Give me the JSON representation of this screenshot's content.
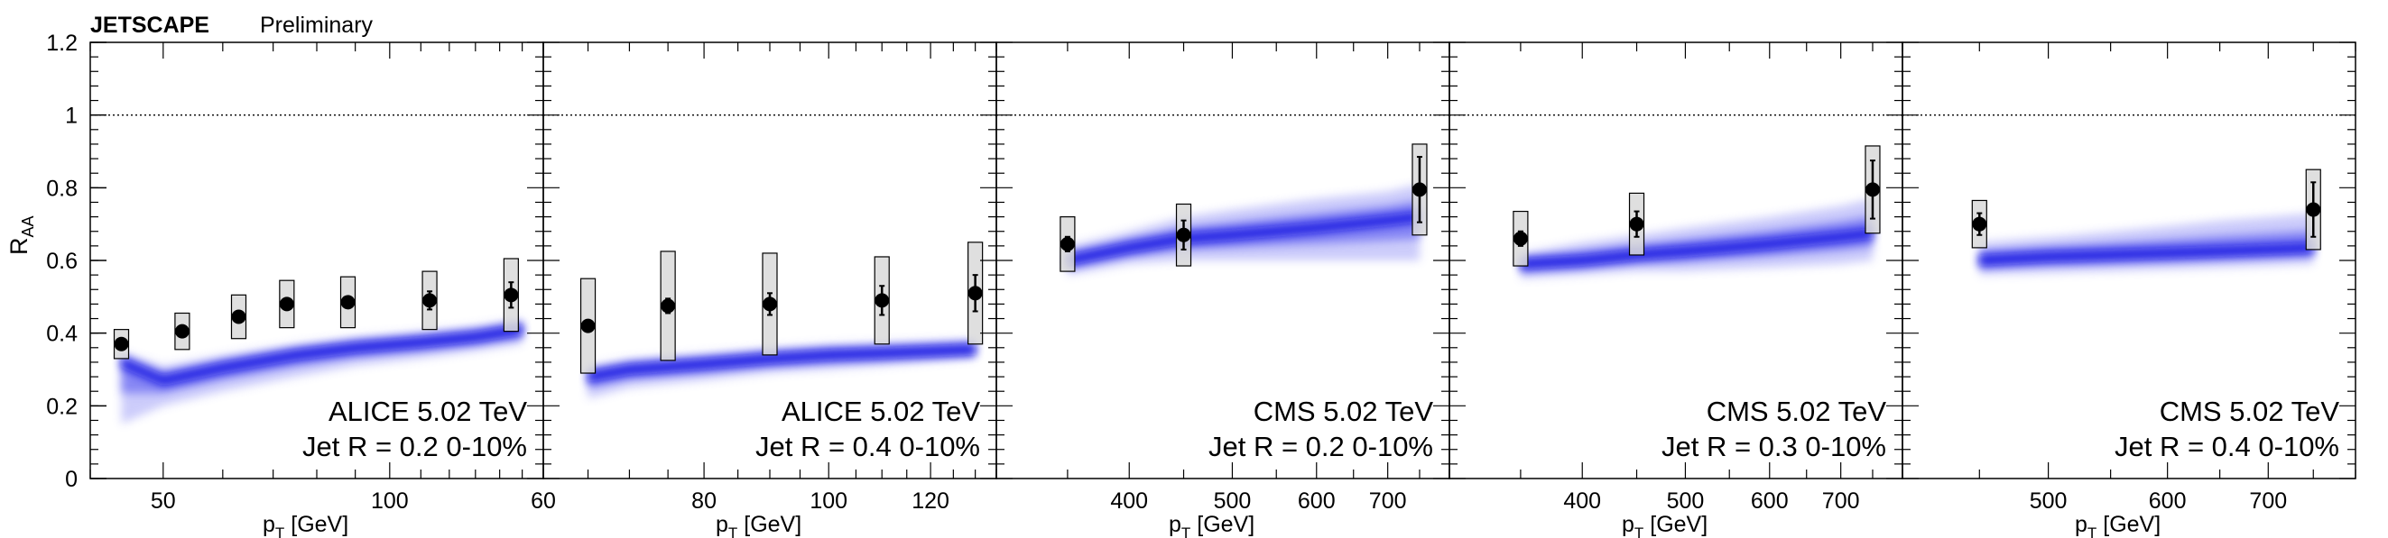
{
  "header": {
    "collab": "JETSCAPE",
    "status": "Preliminary"
  },
  "y_axis": {
    "label_main": "R",
    "label_sub": "AA",
    "ticks": [
      "0",
      "0.2",
      "0.4",
      "0.6",
      "0.8",
      "1",
      "1.2"
    ]
  },
  "x_axis": {
    "label_main": "p",
    "label_sub": "T",
    "label_unit": " [GeV]"
  },
  "chart_data": [
    {
      "type": "scatter",
      "title": "ALICE 5.02 TeV",
      "subtitle": "Jet R = 0.2 0-10%",
      "xlabel": "pT [GeV]",
      "ylabel": "RAA",
      "xlim": [
        40,
        160
      ],
      "ylim": [
        0,
        1.2
      ],
      "xscale": "log",
      "grid": false,
      "x_ticks": [
        50,
        100
      ],
      "x_tick_labels": [
        "50",
        "100"
      ],
      "reference_line": 1,
      "series": [
        {
          "name": "",
          "x": [
            44,
            53,
            63,
            73,
            88,
            113,
            145
          ],
          "y": [
            0.37,
            0.405,
            0.445,
            0.48,
            0.485,
            0.49,
            0.505
          ],
          "stat_err": [
            0.01,
            0.01,
            0.01,
            0.01,
            0.01,
            0.025,
            0.035
          ],
          "sys_err": [
            0.04,
            0.05,
            0.06,
            0.065,
            0.07,
            0.08,
            0.1
          ]
        }
      ],
      "band": {
        "x": [
          44,
          50,
          60,
          75,
          90,
          110,
          130,
          150
        ],
        "center": [
          0.32,
          0.27,
          0.305,
          0.34,
          0.36,
          0.375,
          0.39,
          0.41
        ],
        "upper": [
          0.35,
          0.31,
          0.34,
          0.37,
          0.39,
          0.405,
          0.42,
          0.44
        ],
        "lower": [
          0.15,
          0.2,
          0.24,
          0.28,
          0.31,
          0.33,
          0.35,
          0.37
        ]
      }
    },
    {
      "type": "scatter",
      "title": "ALICE 5.02 TeV",
      "subtitle": "Jet R = 0.4 0-10%",
      "xlabel": "pT [GeV]",
      "ylabel": "RAA",
      "xlim": [
        60,
        135
      ],
      "ylim": [
        0,
        1.2
      ],
      "xscale": "log",
      "grid": false,
      "x_ticks": [
        60,
        80,
        100,
        120
      ],
      "x_tick_labels": [
        "60",
        "80",
        "100",
        "120"
      ],
      "reference_line": 1,
      "series": [
        {
          "name": "",
          "x": [
            65,
            75,
            90,
            110,
            130
          ],
          "y": [
            0.42,
            0.475,
            0.48,
            0.49,
            0.51
          ],
          "stat_err": [
            0.01,
            0.02,
            0.03,
            0.04,
            0.05
          ],
          "sys_err": [
            0.13,
            0.15,
            0.14,
            0.12,
            0.14
          ]
        }
      ],
      "band": {
        "x": [
          65,
          70,
          80,
          90,
          100,
          110,
          120,
          130
        ],
        "center": [
          0.28,
          0.3,
          0.315,
          0.33,
          0.34,
          0.345,
          0.35,
          0.355
        ],
        "upper": [
          0.31,
          0.33,
          0.345,
          0.36,
          0.37,
          0.375,
          0.38,
          0.385
        ],
        "lower": [
          0.22,
          0.25,
          0.27,
          0.29,
          0.3,
          0.31,
          0.32,
          0.33
        ]
      }
    },
    {
      "type": "scatter",
      "title": "CMS 5.02 TeV",
      "subtitle": "Jet R = 0.2 0-10%",
      "xlabel": "pT [GeV]",
      "ylabel": "RAA",
      "xlim": [
        300,
        800
      ],
      "ylim": [
        0,
        1.2
      ],
      "xscale": "log",
      "grid": false,
      "x_ticks": [
        400,
        500,
        600,
        700
      ],
      "x_tick_labels": [
        "400",
        "500",
        "600",
        "700"
      ],
      "reference_line": 1,
      "series": [
        {
          "name": "",
          "x": [
            350,
            450,
            750
          ],
          "y": [
            0.645,
            0.67,
            0.795
          ],
          "stat_err": [
            0.02,
            0.04,
            0.09
          ],
          "sys_err": [
            0.075,
            0.085,
            0.125
          ]
        }
      ],
      "band": {
        "x": [
          350,
          400,
          450,
          500,
          600,
          700,
          750
        ],
        "center": [
          0.6,
          0.635,
          0.66,
          0.67,
          0.69,
          0.71,
          0.72
        ],
        "upper": [
          0.64,
          0.68,
          0.72,
          0.74,
          0.77,
          0.79,
          0.81
        ],
        "lower": [
          0.56,
          0.59,
          0.6,
          0.6,
          0.6,
          0.6,
          0.6
        ]
      }
    },
    {
      "type": "scatter",
      "title": "CMS 5.02 TeV",
      "subtitle": "Jet R = 0.3 0-10%",
      "xlabel": "pT [GeV]",
      "ylabel": "RAA",
      "xlim": [
        300,
        800
      ],
      "ylim": [
        0,
        1.2
      ],
      "xscale": "log",
      "grid": false,
      "x_ticks": [
        400,
        500,
        600,
        700
      ],
      "x_tick_labels": [
        "400",
        "500",
        "600",
        "700"
      ],
      "reference_line": 1,
      "series": [
        {
          "name": "",
          "x": [
            350,
            450,
            750
          ],
          "y": [
            0.66,
            0.7,
            0.795
          ],
          "stat_err": [
            0.02,
            0.035,
            0.08
          ],
          "sys_err": [
            0.075,
            0.085,
            0.12
          ]
        }
      ],
      "band": {
        "x": [
          350,
          400,
          450,
          500,
          600,
          700,
          750
        ],
        "center": [
          0.59,
          0.6,
          0.615,
          0.625,
          0.645,
          0.665,
          0.675
        ],
        "upper": [
          0.62,
          0.65,
          0.67,
          0.69,
          0.72,
          0.75,
          0.77
        ],
        "lower": [
          0.55,
          0.56,
          0.57,
          0.57,
          0.58,
          0.59,
          0.6
        ]
      }
    },
    {
      "type": "scatter",
      "title": "CMS 5.02 TeV",
      "subtitle": "Jet R = 0.4 0-10%",
      "xlabel": "pT [GeV]",
      "ylabel": "RAA",
      "xlim": [
        400,
        800
      ],
      "ylim": [
        0,
        1.2
      ],
      "xscale": "log",
      "grid": false,
      "x_ticks": [
        500,
        600,
        700
      ],
      "x_tick_labels": [
        "500",
        "600",
        "700"
      ],
      "reference_line": 1,
      "series": [
        {
          "name": "",
          "x": [
            450,
            750
          ],
          "y": [
            0.7,
            0.74
          ],
          "stat_err": [
            0.03,
            0.075
          ],
          "sys_err": [
            0.065,
            0.11
          ]
        }
      ],
      "band": {
        "x": [
          450,
          500,
          550,
          600,
          650,
          700,
          750
        ],
        "center": [
          0.6,
          0.61,
          0.615,
          0.62,
          0.625,
          0.63,
          0.635
        ],
        "upper": [
          0.65,
          0.665,
          0.68,
          0.695,
          0.71,
          0.72,
          0.73
        ],
        "lower": [
          0.56,
          0.565,
          0.57,
          0.575,
          0.58,
          0.585,
          0.59
        ]
      }
    }
  ]
}
